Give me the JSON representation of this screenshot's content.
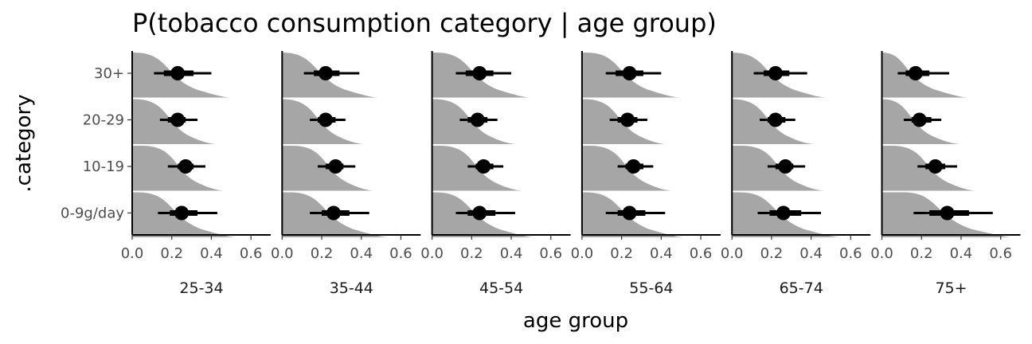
{
  "chart_data": {
    "type": "interval",
    "title": "P(tobacco consumption category | age group)",
    "xlabel": "age group",
    "ylabel": ".category",
    "xlim": [
      0,
      0.7
    ],
    "x_ticks": [
      "0.0",
      "0.2",
      "0.4",
      "0.6"
    ],
    "x_tick_values": [
      0,
      0.2,
      0.4,
      0.6
    ],
    "categories": [
      "30+",
      "20-29",
      "10-19",
      "0-9g/day"
    ],
    "facets": [
      "25-34",
      "35-44",
      "45-54",
      "55-64",
      "65-74",
      "75+"
    ],
    "grid": false,
    "legend": "none",
    "colors": {
      "density": "#a6a6a6",
      "interval": "#000000"
    },
    "panels": [
      {
        "facet": "25-34",
        "rows": [
          {
            "category": "30+",
            "point": 0.23,
            "q66": [
              0.16,
              0.31
            ],
            "q95": [
              0.11,
              0.4
            ]
          },
          {
            "category": "20-29",
            "point": 0.23,
            "q66": [
              0.18,
              0.27
            ],
            "q95": [
              0.14,
              0.33
            ]
          },
          {
            "category": "10-19",
            "point": 0.27,
            "q66": [
              0.23,
              0.31
            ],
            "q95": [
              0.18,
              0.37
            ]
          },
          {
            "category": "0-9g/day",
            "point": 0.25,
            "q66": [
              0.19,
              0.33
            ],
            "q95": [
              0.13,
              0.43
            ]
          }
        ]
      },
      {
        "facet": "35-44",
        "rows": [
          {
            "category": "30+",
            "point": 0.22,
            "q66": [
              0.16,
              0.29
            ],
            "q95": [
              0.11,
              0.39
            ]
          },
          {
            "category": "20-29",
            "point": 0.22,
            "q66": [
              0.18,
              0.27
            ],
            "q95": [
              0.14,
              0.32
            ]
          },
          {
            "category": "10-19",
            "point": 0.27,
            "q66": [
              0.22,
              0.31
            ],
            "q95": [
              0.18,
              0.37
            ]
          },
          {
            "category": "0-9g/day",
            "point": 0.26,
            "q66": [
              0.2,
              0.34
            ],
            "q95": [
              0.14,
              0.44
            ]
          }
        ]
      },
      {
        "facet": "45-54",
        "rows": [
          {
            "category": "30+",
            "point": 0.24,
            "q66": [
              0.17,
              0.31
            ],
            "q95": [
              0.12,
              0.4
            ]
          },
          {
            "category": "20-29",
            "point": 0.23,
            "q66": [
              0.18,
              0.28
            ],
            "q95": [
              0.14,
              0.33
            ]
          },
          {
            "category": "10-19",
            "point": 0.26,
            "q66": [
              0.22,
              0.31
            ],
            "q95": [
              0.18,
              0.36
            ]
          },
          {
            "category": "0-9g/day",
            "point": 0.24,
            "q66": [
              0.18,
              0.32
            ],
            "q95": [
              0.12,
              0.42
            ]
          }
        ]
      },
      {
        "facet": "55-64",
        "rows": [
          {
            "category": "30+",
            "point": 0.24,
            "q66": [
              0.17,
              0.31
            ],
            "q95": [
              0.12,
              0.4
            ]
          },
          {
            "category": "20-29",
            "point": 0.23,
            "q66": [
              0.18,
              0.28
            ],
            "q95": [
              0.14,
              0.33
            ]
          },
          {
            "category": "10-19",
            "point": 0.26,
            "q66": [
              0.22,
              0.31
            ],
            "q95": [
              0.18,
              0.36
            ]
          },
          {
            "category": "0-9g/day",
            "point": 0.24,
            "q66": [
              0.18,
              0.32
            ],
            "q95": [
              0.12,
              0.42
            ]
          }
        ]
      },
      {
        "facet": "65-74",
        "rows": [
          {
            "category": "30+",
            "point": 0.22,
            "q66": [
              0.16,
              0.29
            ],
            "q95": [
              0.11,
              0.38
            ]
          },
          {
            "category": "20-29",
            "point": 0.22,
            "q66": [
              0.18,
              0.27
            ],
            "q95": [
              0.14,
              0.32
            ]
          },
          {
            "category": "10-19",
            "point": 0.27,
            "q66": [
              0.22,
              0.31
            ],
            "q95": [
              0.18,
              0.37
            ]
          },
          {
            "category": "0-9g/day",
            "point": 0.26,
            "q66": [
              0.19,
              0.35
            ],
            "q95": [
              0.13,
              0.45
            ]
          }
        ]
      },
      {
        "facet": "75+",
        "rows": [
          {
            "category": "30+",
            "point": 0.17,
            "q66": [
              0.12,
              0.24
            ],
            "q95": [
              0.08,
              0.34
            ]
          },
          {
            "category": "20-29",
            "point": 0.19,
            "q66": [
              0.15,
              0.25
            ],
            "q95": [
              0.11,
              0.3
            ]
          },
          {
            "category": "10-19",
            "point": 0.27,
            "q66": [
              0.22,
              0.32
            ],
            "q95": [
              0.18,
              0.38
            ]
          },
          {
            "category": "0-9g/day",
            "point": 0.33,
            "q66": [
              0.24,
              0.44
            ],
            "q95": [
              0.16,
              0.56
            ]
          }
        ]
      }
    ]
  }
}
